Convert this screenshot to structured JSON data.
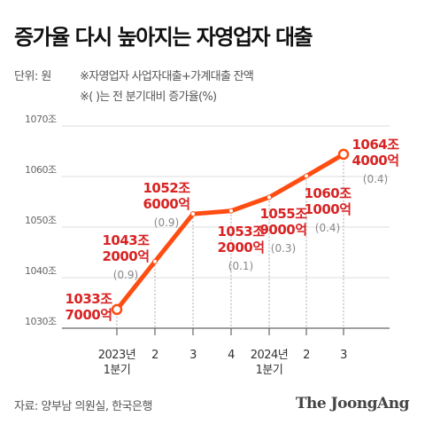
{
  "title": "증가율 다시 높아지는 자영업자 대출",
  "unit_note": "단위: 원",
  "notes": [
    "※자영업자 사업자대출+가계대출 잔액",
    "※( )는 전 분기대비 증가율(%)"
  ],
  "source": "자료: 양부남 의원실, 한국은행",
  "logo": "The JoongAng",
  "colors": {
    "line": "#ff4d12",
    "label": "#d92323",
    "rate": "#888888",
    "grid": "#dddddd",
    "axis": "#666666"
  },
  "chart_data": {
    "type": "line",
    "x": [
      "2023년 1분기",
      "2",
      "3",
      "4",
      "2024년 1분기",
      "2",
      "3"
    ],
    "values": [
      1033.7,
      1043.2,
      1052.6,
      1053.2,
      1055.9,
      1060.1,
      1064.4
    ],
    "ylim": [
      1030,
      1070
    ],
    "yticks": [
      "1030조",
      "1040조",
      "1050조",
      "1060조",
      "1070조"
    ],
    "grid": true,
    "x_tick_lines": [
      [
        "2023년",
        "1분기"
      ],
      [
        "2"
      ],
      [
        "3"
      ],
      [
        "4"
      ],
      [
        "2024년",
        "1분기"
      ],
      [
        "2"
      ],
      [
        "3"
      ]
    ],
    "value_labels": [
      [
        "1033조",
        "7000억"
      ],
      [
        "1043조",
        "2000억"
      ],
      [
        "1052조",
        "6000억"
      ],
      [
        "1053조",
        "2000억"
      ],
      [
        "1055조",
        "9000억"
      ],
      [
        "1060조",
        "1000억"
      ],
      [
        "1064조",
        "4000억"
      ]
    ],
    "growth_rates": [
      "",
      "(0.9)",
      "(0.9)",
      "(0.1)",
      "(0.3)",
      "(0.4)",
      "(0.4)"
    ]
  }
}
